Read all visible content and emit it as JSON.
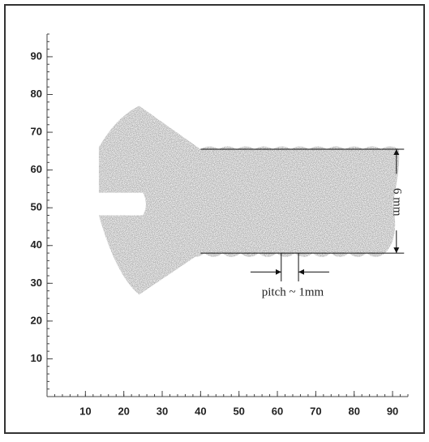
{
  "chart_data": {
    "type": "image",
    "xlim": [
      0,
      94
    ],
    "ylim": [
      0,
      96
    ],
    "xticks": [
      10,
      20,
      30,
      40,
      50,
      60,
      70,
      80,
      90
    ],
    "yticks": [
      10,
      20,
      30,
      40,
      50,
      60,
      70,
      80,
      90
    ],
    "annotations": [
      "6 mm",
      "pitch ~ 1mm"
    ]
  }
}
